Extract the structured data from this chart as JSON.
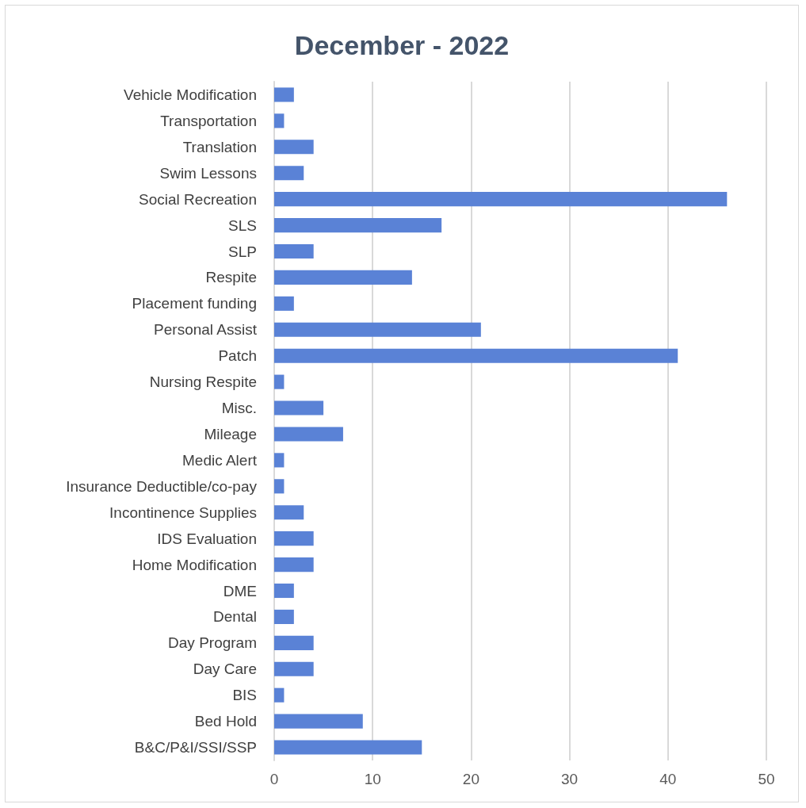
{
  "chart_data": {
    "type": "bar",
    "orientation": "horizontal",
    "title": "December - 2022",
    "categories": [
      "Vehicle Modification",
      "Transportation",
      "Translation",
      "Swim Lessons",
      "Social Recreation",
      "SLS",
      "SLP",
      "Respite",
      "Placement funding",
      "Personal Assist",
      "Patch",
      "Nursing Respite",
      "Misc.",
      "Mileage",
      "Medic Alert",
      "Insurance Deductible/co-pay",
      "Incontinence Supplies",
      "IDS Evaluation",
      "Home Modification",
      "DME",
      "Dental",
      "Day Program",
      "Day Care",
      "BIS",
      "Bed Hold",
      "B&C/P&I/SSI/SSP"
    ],
    "values": [
      2,
      1,
      4,
      3,
      46,
      17,
      4,
      14,
      2,
      21,
      41,
      1,
      5,
      7,
      1,
      1,
      3,
      4,
      4,
      2,
      2,
      4,
      4,
      1,
      9,
      15
    ],
    "color": "#5a82d6",
    "xlim": [
      0,
      50
    ],
    "xticks": [
      0,
      10,
      20,
      30,
      40,
      50
    ],
    "grid": "x"
  }
}
